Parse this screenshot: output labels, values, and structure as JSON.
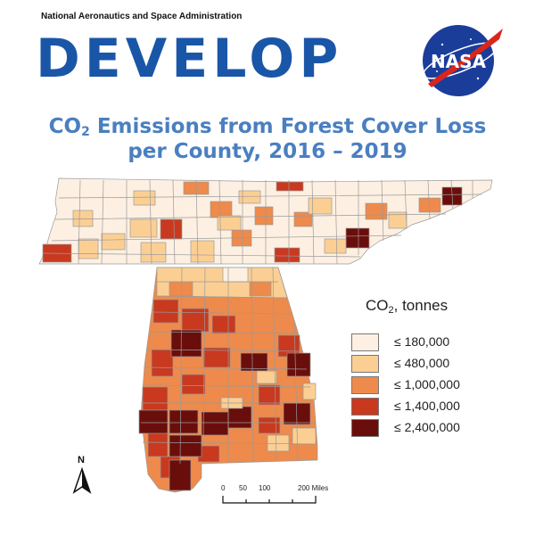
{
  "header": {
    "agency": "National Aeronautics and Space Administration",
    "program": "DEVELOP",
    "nasa_logo_text": "NASA"
  },
  "title": {
    "line1_prefix": "CO",
    "line1_sub": "2",
    "line1_suffix": " Emissions from Forest Cover Loss",
    "line2": "per County, 2016 – 2019"
  },
  "legend": {
    "title_prefix": "CO",
    "title_sub": "2",
    "title_suffix": ", tonnes",
    "items": [
      {
        "label": "≤ 180,000",
        "color": "#fdf0e2"
      },
      {
        "label": "≤ 480,000",
        "color": "#fbcf93"
      },
      {
        "label": "≤ 1,000,000",
        "color": "#ee8a4b"
      },
      {
        "label": "≤ 1,400,000",
        "color": "#c8391f"
      },
      {
        "label": "≤ 2,400,000",
        "color": "#6a0e0b"
      }
    ]
  },
  "north_arrow": {
    "label": "N"
  },
  "scale_bar": {
    "ticks": [
      "0",
      "50",
      "100",
      "200 Miles"
    ]
  }
}
